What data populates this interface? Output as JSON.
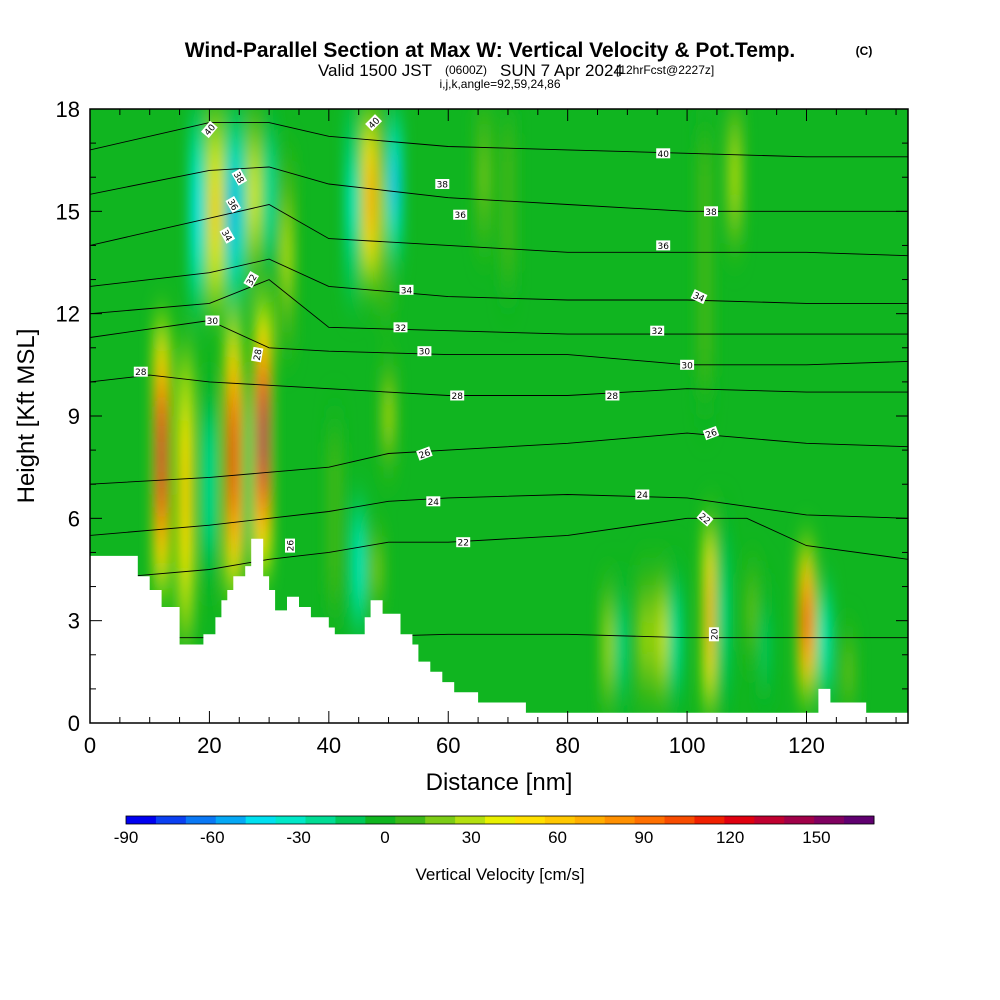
{
  "header": {
    "title": "Wind-Parallel Section at Max W: Vertical Velocity & Pot.Temp.",
    "copyright": "(C)",
    "valid_prefix": "Valid 1500 JST",
    "valid_utc": "(0600Z)",
    "valid_date": "SUN 7 Apr 2024",
    "forecast": "[12hrFcst@2227z]",
    "indices": "i,j,k,angle=92,59,24,86"
  },
  "colors": {
    "terrain": "#ffffff",
    "background_field": "#10b520",
    "contour_line": "#000000",
    "palette": [
      "#0000f0",
      "#0b40f2",
      "#0a78f5",
      "#05a8f5",
      "#00e0f0",
      "#00e8c8",
      "#00dc94",
      "#00c85a",
      "#10b520",
      "#3cb818",
      "#7ccc16",
      "#b4e010",
      "#e8f000",
      "#ffe000",
      "#ffc800",
      "#ffae00",
      "#ff9000",
      "#ff7000",
      "#f84c00",
      "#f02000",
      "#e00010",
      "#c00030",
      "#a00048",
      "#800060",
      "#600070"
    ]
  },
  "chart_data": {
    "type": "heatmap",
    "xlabel": "Distance [nm]",
    "ylabel": "Height [Kft MSL]",
    "xlim": [
      0,
      137
    ],
    "ylim": [
      0,
      18
    ],
    "xticks": [
      0,
      20,
      40,
      60,
      80,
      100,
      120
    ],
    "yticks": [
      0,
      3,
      6,
      9,
      12,
      15,
      18
    ],
    "colorbar": {
      "label": "Vertical Velocity [cm/s]",
      "min": -90,
      "max": 170,
      "ticks": [
        -90,
        -60,
        -30,
        0,
        30,
        60,
        90,
        120,
        150
      ]
    },
    "terrain_profile": {
      "x": [
        0,
        8,
        8,
        10,
        10,
        12,
        12,
        15,
        15,
        19,
        19,
        21,
        21,
        22,
        22,
        23,
        23,
        24,
        24,
        26,
        26,
        27,
        27,
        29,
        29,
        30,
        30,
        31,
        31,
        33,
        33,
        35,
        35,
        37,
        37,
        40,
        40,
        41,
        41,
        43,
        43,
        46,
        46,
        47,
        47,
        49,
        49,
        52,
        52,
        54,
        54,
        55,
        55,
        57,
        57,
        59,
        59,
        61,
        61,
        65,
        65,
        73,
        73,
        122,
        122,
        124,
        124,
        130,
        130,
        137
      ],
      "height": [
        4.9,
        4.9,
        4.3,
        4.3,
        3.9,
        3.9,
        3.4,
        3.4,
        2.3,
        2.3,
        2.6,
        2.6,
        3.1,
        3.1,
        3.6,
        3.6,
        3.9,
        3.9,
        4.3,
        4.3,
        4.6,
        4.6,
        5.4,
        5.4,
        4.3,
        4.3,
        3.9,
        3.9,
        3.3,
        3.3,
        3.7,
        3.7,
        3.4,
        3.4,
        3.1,
        3.1,
        2.8,
        2.8,
        2.6,
        2.6,
        2.6,
        2.6,
        3.1,
        3.1,
        3.6,
        3.6,
        3.2,
        3.2,
        2.6,
        2.6,
        2.3,
        2.3,
        1.8,
        1.8,
        1.5,
        1.5,
        1.2,
        1.2,
        0.9,
        0.9,
        0.6,
        0.6,
        0.3,
        0.3,
        1.0,
        1.0,
        0.6,
        0.6,
        0.3,
        0.3
      ]
    },
    "vertical_velocity_features": [
      {
        "x": 12.0,
        "z_bottom": 3.8,
        "z_top": 11.8,
        "peak": 130
      },
      {
        "x": 16.0,
        "z_bottom": 2.4,
        "z_top": 11.0,
        "peak": 65
      },
      {
        "x": 20.0,
        "z_bottom": 4.0,
        "z_top": 10.0,
        "peak": -25
      },
      {
        "x": 21.0,
        "z_bottom": 12.0,
        "z_top": 18.0,
        "peak": 60
      },
      {
        "x": 18.0,
        "z_bottom": 12.0,
        "z_top": 18.0,
        "peak": -40
      },
      {
        "x": 24.0,
        "z_bottom": 12.0,
        "z_top": 18.0,
        "peak": -55
      },
      {
        "x": 24.0,
        "z_bottom": 3.8,
        "z_top": 11.8,
        "peak": 125
      },
      {
        "x": 27.0,
        "z_bottom": 4.5,
        "z_top": 10.0,
        "peak": -15
      },
      {
        "x": 29.0,
        "z_bottom": 4.5,
        "z_top": 12.2,
        "peak": 150
      },
      {
        "x": 26.0,
        "z_bottom": 12.5,
        "z_top": 18.0,
        "peak": -40
      },
      {
        "x": 27.5,
        "z_bottom": 13.0,
        "z_top": 18.0,
        "peak": 40
      },
      {
        "x": 30.0,
        "z_bottom": 13.0,
        "z_top": 18.0,
        "peak": -25
      },
      {
        "x": 33.0,
        "z_bottom": 11.0,
        "z_top": 16.5,
        "peak": 25
      },
      {
        "x": 44.0,
        "z_bottom": 12.5,
        "z_top": 18.0,
        "peak": -30
      },
      {
        "x": 47.0,
        "z_bottom": 12.8,
        "z_top": 18.0,
        "peak": 75
      },
      {
        "x": 49.5,
        "z_bottom": 12.0,
        "z_top": 18.0,
        "peak": 25
      },
      {
        "x": 51.0,
        "z_bottom": 13.5,
        "z_top": 18.0,
        "peak": -50
      },
      {
        "x": 45.0,
        "z_bottom": 2.7,
        "z_top": 6.5,
        "peak": -35
      },
      {
        "x": 48.0,
        "z_bottom": 3.5,
        "z_top": 5.5,
        "peak": 20
      },
      {
        "x": 50.0,
        "z_bottom": 7.5,
        "z_top": 10.5,
        "peak": 25
      },
      {
        "x": 41.0,
        "z_bottom": 3.0,
        "z_top": 9.0,
        "peak": 10
      },
      {
        "x": 66.0,
        "z_bottom": 14.0,
        "z_top": 18.0,
        "peak": 15
      },
      {
        "x": 70.0,
        "z_bottom": 12.5,
        "z_top": 18.0,
        "peak": 10
      },
      {
        "x": 87.0,
        "z_bottom": 0.5,
        "z_top": 4.0,
        "peak": 30
      },
      {
        "x": 89.0,
        "z_bottom": 0.5,
        "z_top": 4.0,
        "peak": -20
      },
      {
        "x": 93.0,
        "z_bottom": 0.5,
        "z_top": 4.5,
        "peak": 25
      },
      {
        "x": 96.0,
        "z_bottom": 0.5,
        "z_top": 4.5,
        "peak": 35
      },
      {
        "x": 98.0,
        "z_bottom": 0.5,
        "z_top": 4.5,
        "peak": -25
      },
      {
        "x": 104.0,
        "z_bottom": 0.3,
        "z_top": 6.0,
        "peak": 75
      },
      {
        "x": 106.0,
        "z_bottom": 0.3,
        "z_top": 6.0,
        "peak": -20
      },
      {
        "x": 108.0,
        "z_bottom": 14.0,
        "z_top": 18.0,
        "peak": 30
      },
      {
        "x": 103.0,
        "z_bottom": 9.0,
        "z_top": 18.0,
        "peak": 12
      },
      {
        "x": 111.0,
        "z_bottom": 2.0,
        "z_top": 4.5,
        "peak": 15
      },
      {
        "x": 113.0,
        "z_bottom": 0.5,
        "z_top": 4.0,
        "peak": -10
      },
      {
        "x": 120.0,
        "z_bottom": 0.8,
        "z_top": 5.2,
        "peak": 115
      },
      {
        "x": 123.0,
        "z_bottom": 0.8,
        "z_top": 4.0,
        "peak": -35
      },
      {
        "x": 127.0,
        "z_bottom": 0.5,
        "z_top": 2.5,
        "peak": 15
      }
    ],
    "isentropes": [
      {
        "theta": 20,
        "label": "20",
        "x": [
          0,
          20,
          40,
          60,
          80,
          100,
          120,
          137
        ],
        "height": [
          2.5,
          2.5,
          2.5,
          2.6,
          2.6,
          2.5,
          2.5,
          2.5
        ]
      },
      {
        "theta": 22,
        "label": "22",
        "x": [
          0,
          20,
          30,
          40,
          50,
          60,
          80,
          100,
          110,
          120,
          137
        ],
        "height": [
          4.2,
          4.5,
          4.8,
          5.0,
          5.3,
          5.3,
          5.5,
          6.0,
          6.0,
          5.2,
          4.8
        ]
      },
      {
        "theta": 24,
        "label": "24",
        "x": [
          0,
          20,
          40,
          50,
          60,
          80,
          100,
          120,
          137
        ],
        "height": [
          5.5,
          5.8,
          6.2,
          6.5,
          6.6,
          6.7,
          6.6,
          6.1,
          6.0
        ]
      },
      {
        "theta": 26,
        "label": "26",
        "x": [
          0,
          20,
          40,
          50,
          60,
          80,
          100,
          120,
          137
        ],
        "height": [
          7.0,
          7.2,
          7.5,
          7.9,
          8.0,
          8.2,
          8.5,
          8.2,
          8.1
        ]
      },
      {
        "theta": 28,
        "label": "28",
        "x": [
          0,
          10,
          20,
          40,
          60,
          80,
          100,
          120,
          137
        ],
        "height": [
          10.0,
          10.2,
          10.0,
          9.8,
          9.6,
          9.6,
          9.8,
          9.7,
          9.7
        ]
      },
      {
        "theta": 30,
        "label": "30",
        "x": [
          0,
          20,
          30,
          40,
          60,
          80,
          100,
          120,
          137
        ],
        "height": [
          11.3,
          11.8,
          11.0,
          10.9,
          10.8,
          10.8,
          10.5,
          10.5,
          10.6
        ]
      },
      {
        "theta": 32,
        "label": "32",
        "x": [
          0,
          20,
          30,
          40,
          60,
          80,
          100,
          120,
          137
        ],
        "height": [
          12.0,
          12.3,
          13.0,
          11.6,
          11.5,
          11.4,
          11.4,
          11.4,
          11.4
        ]
      },
      {
        "theta": 34,
        "label": "34",
        "x": [
          0,
          20,
          30,
          40,
          60,
          80,
          100,
          120,
          137
        ],
        "height": [
          12.8,
          13.2,
          13.6,
          12.8,
          12.5,
          12.4,
          12.4,
          12.3,
          12.3
        ]
      },
      {
        "theta": 36,
        "label": "36",
        "x": [
          0,
          20,
          30,
          40,
          60,
          80,
          100,
          120,
          137
        ],
        "height": [
          14.0,
          14.8,
          15.2,
          14.2,
          14.0,
          13.8,
          13.8,
          13.8,
          13.7
        ]
      },
      {
        "theta": 38,
        "label": "38",
        "x": [
          0,
          20,
          30,
          40,
          60,
          80,
          100,
          120,
          137
        ],
        "height": [
          15.5,
          16.2,
          16.3,
          15.8,
          15.4,
          15.2,
          15.0,
          15.0,
          15.0
        ]
      },
      {
        "theta": 40,
        "label": "40",
        "x": [
          0,
          20,
          30,
          40,
          60,
          80,
          100,
          120,
          137
        ],
        "height": [
          16.8,
          17.6,
          17.6,
          17.2,
          16.9,
          16.8,
          16.7,
          16.6,
          16.6
        ]
      }
    ],
    "contour_labels": [
      {
        "text": "40",
        "x": 20.0,
        "y": 17.4,
        "rot": -50
      },
      {
        "text": "40",
        "x": 47.5,
        "y": 17.6,
        "rot": -45
      },
      {
        "text": "40",
        "x": 96.0,
        "y": 16.7,
        "rot": 0
      },
      {
        "text": "38",
        "x": 25.0,
        "y": 16.0,
        "rot": 60
      },
      {
        "text": "38",
        "x": 59.0,
        "y": 15.8,
        "rot": 0
      },
      {
        "text": "38",
        "x": 104.0,
        "y": 15.0,
        "rot": 0
      },
      {
        "text": "36",
        "x": 24.0,
        "y": 15.2,
        "rot": 60
      },
      {
        "text": "36",
        "x": 62.0,
        "y": 14.9,
        "rot": 0
      },
      {
        "text": "36",
        "x": 96.0,
        "y": 14.0,
        "rot": 0
      },
      {
        "text": "34",
        "x": 23.0,
        "y": 14.3,
        "rot": 60
      },
      {
        "text": "34",
        "x": 53.0,
        "y": 12.7,
        "rot": 0
      },
      {
        "text": "34",
        "x": 102.0,
        "y": 12.5,
        "rot": 25
      },
      {
        "text": "32",
        "x": 27.0,
        "y": 13.0,
        "rot": -60
      },
      {
        "text": "32",
        "x": 52.0,
        "y": 11.6,
        "rot": 0
      },
      {
        "text": "32",
        "x": 95.0,
        "y": 11.5,
        "rot": 0
      },
      {
        "text": "30",
        "x": 20.5,
        "y": 11.8,
        "rot": 0
      },
      {
        "text": "30",
        "x": 56.0,
        "y": 10.9,
        "rot": 0
      },
      {
        "text": "30",
        "x": 100.0,
        "y": 10.5,
        "rot": 0
      },
      {
        "text": "28",
        "x": 8.5,
        "y": 10.3,
        "rot": 0
      },
      {
        "text": "28",
        "x": 28.0,
        "y": 10.8,
        "rot": -80
      },
      {
        "text": "28",
        "x": 61.5,
        "y": 9.6,
        "rot": 0
      },
      {
        "text": "28",
        "x": 87.5,
        "y": 9.6,
        "rot": 0
      },
      {
        "text": "26",
        "x": 56.0,
        "y": 7.9,
        "rot": -20
      },
      {
        "text": "26",
        "x": 104.0,
        "y": 8.5,
        "rot": -20
      },
      {
        "text": "26",
        "x": 33.5,
        "y": 5.2,
        "rot": -90
      },
      {
        "text": "24",
        "x": 57.5,
        "y": 6.5,
        "rot": 0
      },
      {
        "text": "24",
        "x": 92.5,
        "y": 6.7,
        "rot": 0
      },
      {
        "text": "22",
        "x": 62.5,
        "y": 5.3,
        "rot": 0
      },
      {
        "text": "22",
        "x": 103.0,
        "y": 6.0,
        "rot": 40
      },
      {
        "text": "20",
        "x": 104.5,
        "y": 2.6,
        "rot": -90
      }
    ]
  }
}
